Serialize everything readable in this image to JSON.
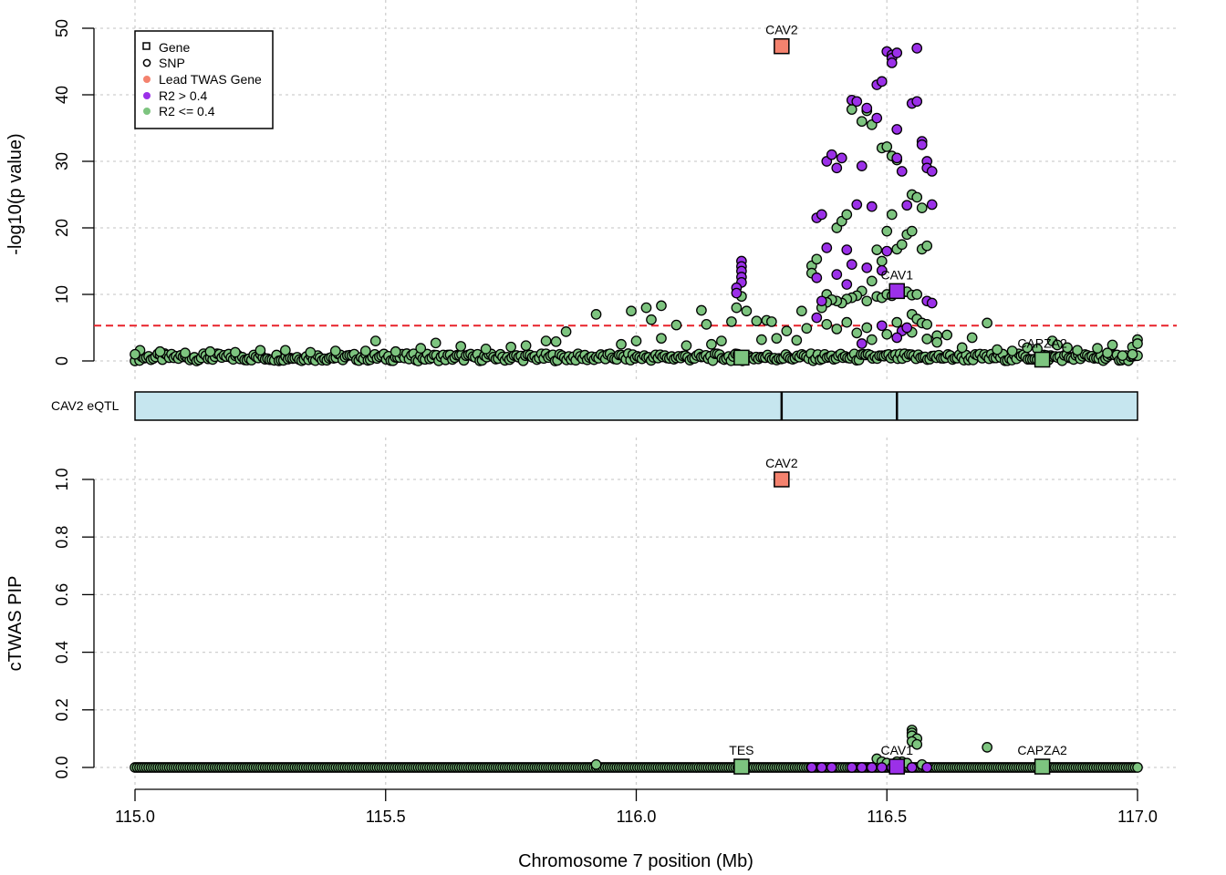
{
  "colors": {
    "lead": "#f4826e",
    "high_ld": "#9b30e8",
    "low_ld": "#7dc47f",
    "threshold": "#e8222a",
    "eqtl_fill": "#c6e6ef"
  },
  "chart_data": [
    {
      "type": "scatter",
      "panel": "gwas",
      "ylabel": "-log10(p value)",
      "xlim": [
        115.0,
        117.0
      ],
      "ylim": [
        0,
        50
      ],
      "yticks": [
        "0",
        "10",
        "20",
        "30",
        "40",
        "50"
      ],
      "significance_threshold": 5.3,
      "genes": [
        {
          "name": "CAV2",
          "x": 116.29,
          "y": 47.3,
          "group": "lead",
          "label": "CAV2"
        },
        {
          "name": "CAV1",
          "x": 116.52,
          "y": 10.5,
          "group": "high_ld",
          "label": "CAV1"
        },
        {
          "name": "TES",
          "x": 116.21,
          "y": 0.5,
          "group": "low_ld",
          "label": ""
        },
        {
          "name": "CAPZA2",
          "x": 116.81,
          "y": 0.2,
          "group": "low_ld",
          "label": "CAPZA2"
        }
      ],
      "snp_groups": {
        "high_ld": [
          [
            116.21,
            15.0
          ],
          [
            116.21,
            14.2
          ],
          [
            116.21,
            13.5
          ],
          [
            116.21,
            12.6
          ],
          [
            116.21,
            11.8
          ],
          [
            116.2,
            11.0
          ],
          [
            116.2,
            10.2
          ],
          [
            116.36,
            21.5
          ],
          [
            116.37,
            22.0
          ],
          [
            116.38,
            17.0
          ],
          [
            116.36,
            12.5
          ],
          [
            116.37,
            9.0
          ],
          [
            116.38,
            30.0
          ],
          [
            116.39,
            31.0
          ],
          [
            116.4,
            29.0
          ],
          [
            116.41,
            30.5
          ],
          [
            116.4,
            13.0
          ],
          [
            116.42,
            11.5
          ],
          [
            116.43,
            14.5
          ],
          [
            116.44,
            23.5
          ],
          [
            116.45,
            29.3
          ],
          [
            116.46,
            38.0
          ],
          [
            116.48,
            36.5
          ],
          [
            116.48,
            41.5
          ],
          [
            116.49,
            42.0
          ],
          [
            116.5,
            46.5
          ],
          [
            116.51,
            46.0
          ],
          [
            116.51,
            45.5
          ],
          [
            116.52,
            46.3
          ],
          [
            116.51,
            44.8
          ],
          [
            116.52,
            34.8
          ],
          [
            116.52,
            30.5
          ],
          [
            116.53,
            28.5
          ],
          [
            116.55,
            38.7
          ],
          [
            116.56,
            39.0
          ],
          [
            116.56,
            47.0
          ],
          [
            116.57,
            33.0
          ],
          [
            116.57,
            32.5
          ],
          [
            116.58,
            30.0
          ],
          [
            116.58,
            29.0
          ],
          [
            116.59,
            28.5
          ],
          [
            116.59,
            23.5
          ],
          [
            116.47,
            23.2
          ],
          [
            116.43,
            39.2
          ],
          [
            116.44,
            39.0
          ],
          [
            116.53,
            4.5
          ],
          [
            116.52,
            3.5
          ],
          [
            116.54,
            5.0
          ],
          [
            116.49,
            5.3
          ],
          [
            116.45,
            2.6
          ],
          [
            116.58,
            9.0
          ],
          [
            116.59,
            8.7
          ],
          [
            116.5,
            16.5
          ],
          [
            116.46,
            14.0
          ],
          [
            116.49,
            13.6
          ],
          [
            116.54,
            23.4
          ],
          [
            116.36,
            6.5
          ],
          [
            116.42,
            16.7
          ]
        ],
        "low_ld": [
          [
            116.22,
            7.5
          ],
          [
            116.2,
            8.0
          ],
          [
            116.21,
            9.7
          ],
          [
            116.19,
            5.9
          ],
          [
            116.24,
            6.0
          ],
          [
            116.26,
            6.1
          ],
          [
            116.27,
            5.9
          ],
          [
            116.13,
            7.6
          ],
          [
            115.92,
            7.0
          ],
          [
            115.99,
            7.5
          ],
          [
            116.02,
            8.0
          ],
          [
            116.05,
            8.3
          ],
          [
            116.03,
            6.2
          ],
          [
            116.08,
            5.4
          ],
          [
            116.14,
            5.5
          ],
          [
            116.33,
            7.5
          ],
          [
            116.35,
            14.3
          ],
          [
            116.36,
            15.3
          ],
          [
            116.38,
            10.0
          ],
          [
            116.35,
            13.2
          ],
          [
            116.4,
            20.0
          ],
          [
            116.41,
            21.0
          ],
          [
            116.42,
            22.0
          ],
          [
            116.43,
            37.8
          ],
          [
            116.45,
            36.0
          ],
          [
            116.46,
            37.6
          ],
          [
            116.47,
            35.5
          ],
          [
            116.49,
            32.0
          ],
          [
            116.5,
            32.2
          ],
          [
            116.51,
            30.8
          ],
          [
            116.52,
            30.2
          ],
          [
            116.5,
            19.5
          ],
          [
            116.51,
            22.0
          ],
          [
            116.52,
            16.8
          ],
          [
            116.53,
            17.5
          ],
          [
            116.54,
            19.0
          ],
          [
            116.55,
            25.0
          ],
          [
            116.56,
            24.6
          ],
          [
            116.57,
            23.0
          ],
          [
            116.55,
            19.5
          ],
          [
            116.57,
            16.8
          ],
          [
            116.58,
            17.3
          ],
          [
            116.48,
            16.7
          ],
          [
            116.49,
            15.0
          ],
          [
            116.47,
            12.0
          ],
          [
            116.45,
            10.5
          ],
          [
            116.44,
            9.8
          ],
          [
            116.43,
            9.5
          ],
          [
            116.42,
            9.3
          ],
          [
            116.41,
            8.7
          ],
          [
            116.4,
            9.0
          ],
          [
            116.39,
            9.2
          ],
          [
            116.38,
            8.8
          ],
          [
            116.37,
            8.0
          ],
          [
            116.46,
            9.0
          ],
          [
            116.48,
            9.7
          ],
          [
            116.49,
            9.5
          ],
          [
            116.5,
            10.0
          ],
          [
            116.51,
            9.8
          ],
          [
            116.53,
            10.2
          ],
          [
            116.54,
            10.4
          ],
          [
            116.55,
            9.9
          ],
          [
            116.56,
            10.0
          ],
          [
            116.55,
            7.0
          ],
          [
            116.56,
            6.3
          ],
          [
            116.57,
            5.7
          ],
          [
            116.58,
            5.5
          ],
          [
            116.6,
            3.8
          ],
          [
            116.62,
            3.9
          ],
          [
            116.67,
            3.5
          ],
          [
            116.7,
            5.7
          ],
          [
            116.75,
            1.5
          ],
          [
            116.78,
            2.0
          ],
          [
            116.83,
            3.0
          ],
          [
            116.84,
            2.4
          ],
          [
            116.86,
            2.0
          ],
          [
            116.88,
            1.6
          ],
          [
            116.92,
            1.9
          ],
          [
            116.95,
            2.4
          ],
          [
            116.99,
            2.1
          ],
          [
            117.0,
            3.2
          ],
          [
            117.0,
            2.6
          ],
          [
            116.99,
            1.0
          ],
          [
            116.97,
            0.8
          ],
          [
            116.94,
            1.2
          ],
          [
            115.86,
            4.4
          ],
          [
            115.82,
            3.0
          ],
          [
            115.84,
            2.9
          ],
          [
            115.78,
            2.3
          ],
          [
            115.75,
            2.1
          ],
          [
            115.7,
            1.8
          ],
          [
            115.65,
            2.2
          ],
          [
            115.6,
            2.7
          ],
          [
            115.57,
            1.9
          ],
          [
            115.52,
            1.4
          ],
          [
            115.48,
            3.0
          ],
          [
            115.46,
            1.5
          ],
          [
            115.4,
            1.5
          ],
          [
            115.35,
            1.3
          ],
          [
            115.3,
            1.6
          ],
          [
            115.25,
            1.6
          ],
          [
            115.2,
            1.3
          ],
          [
            115.15,
            1.4
          ],
          [
            115.1,
            1.2
          ],
          [
            115.05,
            1.4
          ],
          [
            115.01,
            1.6
          ],
          [
            115.0,
            1.0
          ],
          [
            115.97,
            2.5
          ],
          [
            116.0,
            3.0
          ],
          [
            116.05,
            3.4
          ],
          [
            116.1,
            2.3
          ],
          [
            116.15,
            2.5
          ],
          [
            116.17,
            3.0
          ],
          [
            116.25,
            3.2
          ],
          [
            116.28,
            3.4
          ],
          [
            116.3,
            4.5
          ],
          [
            116.32,
            3.1
          ],
          [
            116.34,
            4.9
          ],
          [
            116.38,
            5.5
          ],
          [
            116.4,
            4.8
          ],
          [
            116.42,
            5.8
          ],
          [
            116.44,
            4.2
          ],
          [
            116.46,
            5.0
          ],
          [
            116.47,
            3.2
          ],
          [
            116.5,
            4.0
          ],
          [
            116.52,
            5.8
          ],
          [
            116.55,
            4.3
          ],
          [
            116.58,
            3.3
          ],
          [
            116.6,
            2.8
          ],
          [
            116.65,
            2.0
          ],
          [
            116.72,
            1.7
          ],
          [
            116.8,
            1.8
          ]
        ]
      },
      "baseline_snps": {
        "x_start": 115.0,
        "x_end": 117.0,
        "count": 440
      }
    },
    {
      "type": "segments",
      "panel": "eqtl_track",
      "label": "CAV2 eQTL",
      "range": [
        115.0,
        117.0
      ],
      "breaks": [
        116.29,
        116.52
      ]
    },
    {
      "type": "scatter",
      "panel": "pip",
      "ylabel": "cTWAS PIP",
      "xlabel": "Chromosome 7 position (Mb)",
      "xlim": [
        115.0,
        117.0
      ],
      "ylim": [
        0,
        1.0
      ],
      "xticks": [
        "115.0",
        "115.5",
        "116.0",
        "116.5",
        "117.0"
      ],
      "yticks": [
        "0.0",
        "0.2",
        "0.4",
        "0.6",
        "0.8",
        "1.0"
      ],
      "genes": [
        {
          "name": "CAV2",
          "x": 116.29,
          "y": 1.0,
          "group": "lead",
          "label": "CAV2"
        },
        {
          "name": "CAV1",
          "x": 116.52,
          "y": 0.003,
          "group": "high_ld",
          "label": "CAV1"
        },
        {
          "name": "TES",
          "x": 116.21,
          "y": 0.003,
          "group": "low_ld",
          "label": "TES"
        },
        {
          "name": "CAPZA2",
          "x": 116.81,
          "y": 0.003,
          "group": "low_ld",
          "label": "CAPZA2"
        }
      ],
      "snp_groups": {
        "low_ld": [
          [
            116.55,
            0.13
          ],
          [
            116.55,
            0.12
          ],
          [
            116.55,
            0.11
          ],
          [
            116.56,
            0.1
          ],
          [
            116.55,
            0.09
          ],
          [
            116.56,
            0.08
          ],
          [
            116.7,
            0.07
          ],
          [
            116.48,
            0.03
          ],
          [
            116.49,
            0.02
          ],
          [
            116.53,
            0.02
          ],
          [
            116.54,
            0.015
          ],
          [
            116.57,
            0.01
          ],
          [
            116.52,
            0.02
          ],
          [
            116.5,
            0.015
          ],
          [
            115.92,
            0.01
          ]
        ],
        "high_ld": [
          [
            116.35,
            0.0
          ],
          [
            116.37,
            0.0
          ],
          [
            116.39,
            0.0
          ],
          [
            116.43,
            0.0
          ],
          [
            116.45,
            0.0
          ],
          [
            116.47,
            0.0
          ],
          [
            116.49,
            0.0
          ],
          [
            116.51,
            0.0
          ],
          [
            116.55,
            0.0
          ],
          [
            116.58,
            0.0
          ]
        ]
      },
      "baseline_snps": {
        "x_start": 115.0,
        "x_end": 117.0,
        "count": 440
      }
    }
  ],
  "legend": {
    "items": [
      {
        "label": "Gene",
        "kind": "square-outline"
      },
      {
        "label": "SNP",
        "kind": "circle-outline"
      },
      {
        "label": "Lead TWAS Gene",
        "kind": "lead"
      },
      {
        "label": "R2 > 0.4",
        "kind": "high_ld"
      },
      {
        "label": "R2 <= 0.4",
        "kind": "low_ld"
      }
    ]
  }
}
